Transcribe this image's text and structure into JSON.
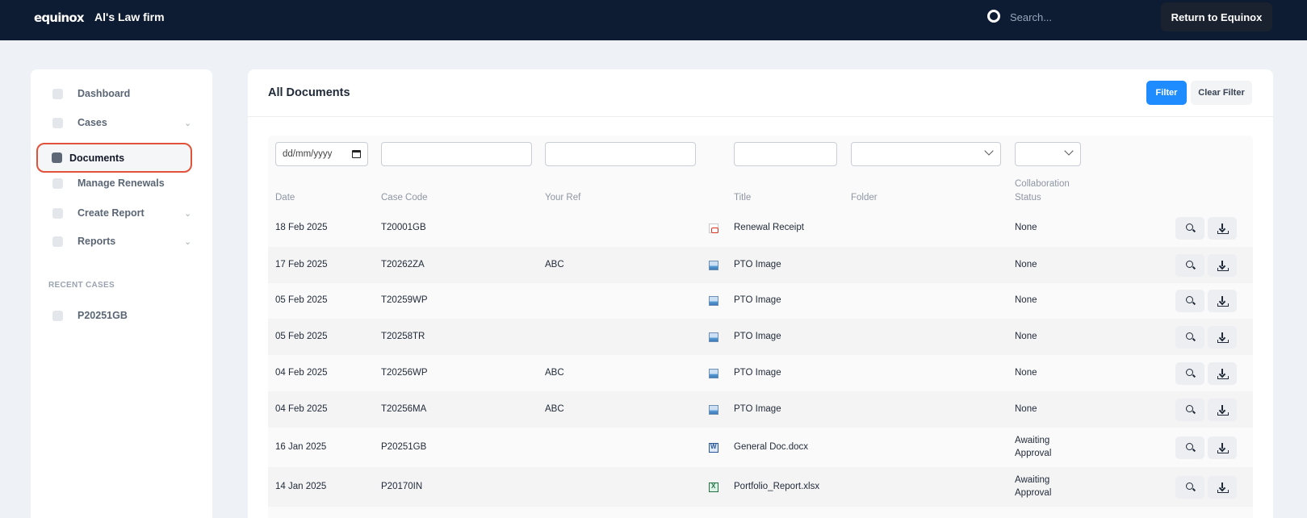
{
  "topbar": {
    "logo": "equinox",
    "firm_name": "Al's Law firm",
    "search_placeholder": "Search...",
    "return_label": "Return to Equinox"
  },
  "sidebar": {
    "items": [
      {
        "label": "Dashboard",
        "icon": "dashboard-icon"
      },
      {
        "label": "Cases",
        "icon": "cases-icon"
      },
      {
        "label": "Documents",
        "icon": "documents-icon"
      },
      {
        "label": "Manage Renewals",
        "icon": "renewals-icon"
      },
      {
        "label": "Create Report",
        "icon": "plus-icon"
      },
      {
        "label": "Reports",
        "icon": "reports-icon"
      }
    ],
    "active_item": "Documents",
    "recent_heading": "RECENT CASES",
    "recent_cases": [
      "P20251GB"
    ]
  },
  "main": {
    "title": "All Documents",
    "filter_label": "Filter",
    "clear_filter_label": "Clear Filter",
    "filters": {
      "date_placeholder": "dd/mm/yyyy"
    },
    "columns": {
      "date": "Date",
      "case_code": "Case Code",
      "your_ref": "Your Ref",
      "title": "Title",
      "folder": "Folder",
      "collab_line1": "Collaboration",
      "collab_line2": "Status"
    },
    "rows": [
      {
        "date": "18 Feb 2025",
        "case_code": "T20001GB",
        "ref": "",
        "type": "pdf",
        "title": "Renewal Receipt",
        "folder": "",
        "status": "None",
        "status2": ""
      },
      {
        "date": "17 Feb 2025",
        "case_code": "T20262ZA",
        "ref": "ABC",
        "type": "image",
        "title": "PTO Image",
        "folder": "",
        "status": "None",
        "status2": ""
      },
      {
        "date": "05 Feb 2025",
        "case_code": "T20259WP",
        "ref": "",
        "type": "image",
        "title": "PTO Image",
        "folder": "",
        "status": "None",
        "status2": ""
      },
      {
        "date": "05 Feb 2025",
        "case_code": "T20258TR",
        "ref": "",
        "type": "image",
        "title": "PTO Image",
        "folder": "",
        "status": "None",
        "status2": ""
      },
      {
        "date": "04 Feb 2025",
        "case_code": "T20256WP",
        "ref": "ABC",
        "type": "image",
        "title": "PTO Image",
        "folder": "",
        "status": "None",
        "status2": ""
      },
      {
        "date": "04 Feb 2025",
        "case_code": "T20256MA",
        "ref": "ABC",
        "type": "image",
        "title": "PTO Image",
        "folder": "",
        "status": "None",
        "status2": ""
      },
      {
        "date": "16 Jan 2025",
        "case_code": "P20251GB",
        "ref": "",
        "type": "word",
        "title": "General Doc.docx",
        "folder": "",
        "status": "Awaiting",
        "status2": "Approval"
      },
      {
        "date": "14 Jan 2025",
        "case_code": "P20170IN",
        "ref": "",
        "type": "excel",
        "title": "Portfolio_Report.xlsx",
        "folder": "",
        "status": "Awaiting",
        "status2": "Approval"
      }
    ]
  },
  "colors": {
    "topbar": "#0d1b33",
    "accent": "#1e8bff",
    "highlight": "#e0533a"
  }
}
